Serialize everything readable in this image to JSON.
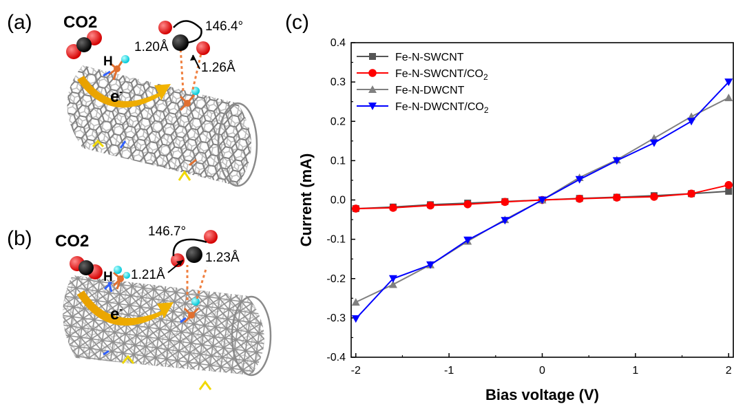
{
  "panels": {
    "a": {
      "label": "(a)",
      "molecule": "CO2",
      "h_label": "H",
      "electron": "e",
      "angle": "146.4°",
      "bond_left": "1.20Å",
      "bond_right": "1.26Å"
    },
    "b": {
      "label": "(b)",
      "molecule": "CO2",
      "h_label": "H",
      "electron": "e",
      "angle": "146.7°",
      "bond_left": "1.21Å",
      "bond_right": "1.23Å"
    },
    "c": {
      "label": "(c)"
    }
  },
  "chart_data": {
    "type": "line",
    "xlabel": "Bias voltage (V)",
    "ylabel": "Current (mA)",
    "xlim": [
      -2.05,
      2.05
    ],
    "ylim": [
      -0.4,
      0.4
    ],
    "xticks": [
      -2,
      -1,
      0,
      1,
      2
    ],
    "yticks": [
      -0.4,
      -0.3,
      -0.2,
      -0.1,
      0.0,
      0.1,
      0.2,
      0.3,
      0.4
    ],
    "grid": false,
    "legend_position": "top-left",
    "x": [
      -2,
      -1.6,
      -1.2,
      -0.8,
      -0.4,
      0,
      0.4,
      0.8,
      1.2,
      1.6,
      2
    ],
    "series": [
      {
        "name": "Fe-N-SWCNT",
        "marker": "square",
        "color": "#555555",
        "values": [
          -0.022,
          -0.018,
          -0.012,
          -0.008,
          -0.004,
          0.0,
          0.004,
          0.007,
          0.011,
          0.016,
          0.022
        ]
      },
      {
        "name": "Fe-N-SWCNT/CO",
        "name_sub": "2",
        "marker": "circle",
        "color": "#ff0000",
        "values": [
          -0.022,
          -0.02,
          -0.014,
          -0.011,
          -0.005,
          0.0,
          0.003,
          0.006,
          0.008,
          0.016,
          0.038
        ]
      },
      {
        "name": "Fe-N-DWCNT",
        "marker": "triangle-up",
        "color": "#808080",
        "values": [
          -0.26,
          -0.215,
          -0.165,
          -0.105,
          -0.05,
          0.0,
          0.057,
          0.102,
          0.157,
          0.212,
          0.26
        ]
      },
      {
        "name": "Fe-N-DWCNT/CO",
        "name_sub": "2",
        "marker": "triangle-down",
        "color": "#0000ff",
        "values": [
          -0.302,
          -0.2,
          -0.165,
          -0.102,
          -0.052,
          0.0,
          0.052,
          0.1,
          0.145,
          0.2,
          0.3
        ]
      }
    ]
  }
}
